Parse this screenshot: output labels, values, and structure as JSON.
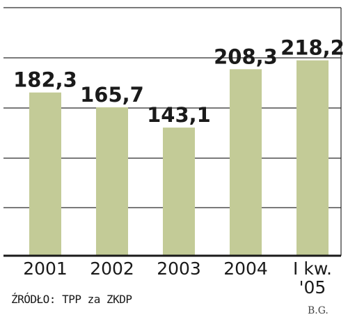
{
  "chart_data": {
    "type": "bar",
    "categories": [
      "2001",
      "2002",
      "2003",
      "2004",
      "I kw.\n'05"
    ],
    "values": [
      182.3,
      165.7,
      143.1,
      208.3,
      218.2
    ],
    "value_labels": [
      "182,3",
      "165,7",
      "143,1",
      "208,3",
      "218,2"
    ],
    "title": "",
    "xlabel": "",
    "ylabel": "",
    "grid": true,
    "bar_color": "#c3cb97",
    "axis_color": "#1a1a1a"
  },
  "source": "ŹRÓDŁO: TPP za ZKDP",
  "author": "B.G."
}
